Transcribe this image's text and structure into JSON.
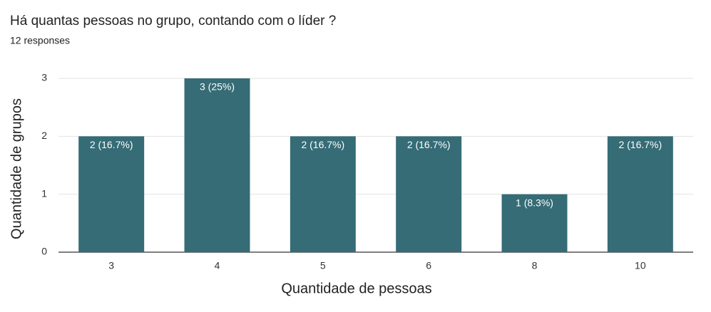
{
  "chart_data": {
    "type": "bar",
    "title": "Há quantas pessoas no grupo, contando com o líder ?",
    "subtitle": "12 responses",
    "x_label": "Quantidade de pessoas",
    "y_label": "Quantidade de grupos",
    "categories": [
      "3",
      "4",
      "5",
      "6",
      "8",
      "10"
    ],
    "values": [
      2,
      3,
      2,
      2,
      1,
      2
    ],
    "value_labels": [
      "2 (16.7%)",
      "3 (25%)",
      "2 (16.7%)",
      "2 (16.7%)",
      "1 (8.3%)",
      "2 (16.7%)"
    ],
    "color": "#356c76",
    "ylim": [
      0,
      3
    ],
    "yticks": [
      0,
      1,
      2,
      3
    ],
    "grid": true
  }
}
